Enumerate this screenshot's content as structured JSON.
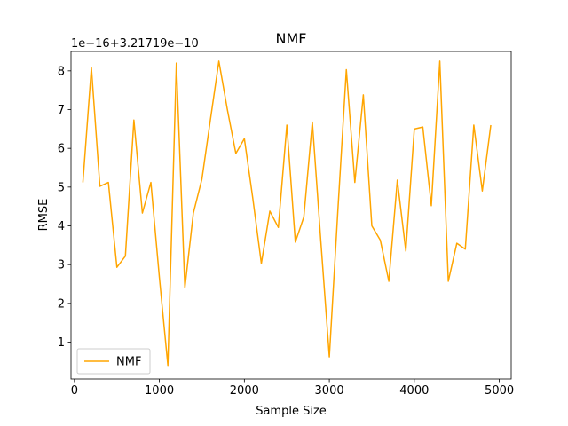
{
  "chart_data": {
    "type": "line",
    "title": "NMF",
    "xlabel": "Sample Size",
    "ylabel": "RMSE",
    "offset_text": "1e−16+3.21719e−10",
    "xlim": [
      -40,
      5140
    ],
    "ylim": [
      0.05,
      8.5
    ],
    "xticks": [
      0,
      1000,
      2000,
      3000,
      4000,
      5000
    ],
    "yticks": [
      1,
      2,
      3,
      4,
      5,
      6,
      7,
      8
    ],
    "grid": false,
    "legend_position": "lower-left",
    "series": [
      {
        "name": "NMF",
        "color": "#ffa500",
        "x": [
          100,
          200,
          300,
          400,
          500,
          600,
          700,
          800,
          900,
          1000,
          1100,
          1200,
          1300,
          1400,
          1500,
          1600,
          1700,
          1800,
          1900,
          2000,
          2100,
          2200,
          2300,
          2400,
          2500,
          2600,
          2700,
          2800,
          2900,
          3000,
          3100,
          3200,
          3300,
          3400,
          3500,
          3600,
          3700,
          3800,
          3900,
          4000,
          4100,
          4200,
          4300,
          4400,
          4500,
          4600,
          4700,
          4800,
          4900
        ],
        "values": [
          5.12,
          8.08,
          5.02,
          5.12,
          2.93,
          3.22,
          6.73,
          4.33,
          5.12,
          2.67,
          0.4,
          8.2,
          2.4,
          4.33,
          5.2,
          6.73,
          8.25,
          7.0,
          5.87,
          6.25,
          4.7,
          3.03,
          4.38,
          3.96,
          6.6,
          3.58,
          4.23,
          6.68,
          3.6,
          0.62,
          4.38,
          8.03,
          5.12,
          7.38,
          4.0,
          3.63,
          2.57,
          5.18,
          3.35,
          6.5,
          6.55,
          4.52,
          8.25,
          2.57,
          3.55,
          3.4,
          6.6,
          4.9,
          6.6
        ]
      }
    ]
  }
}
